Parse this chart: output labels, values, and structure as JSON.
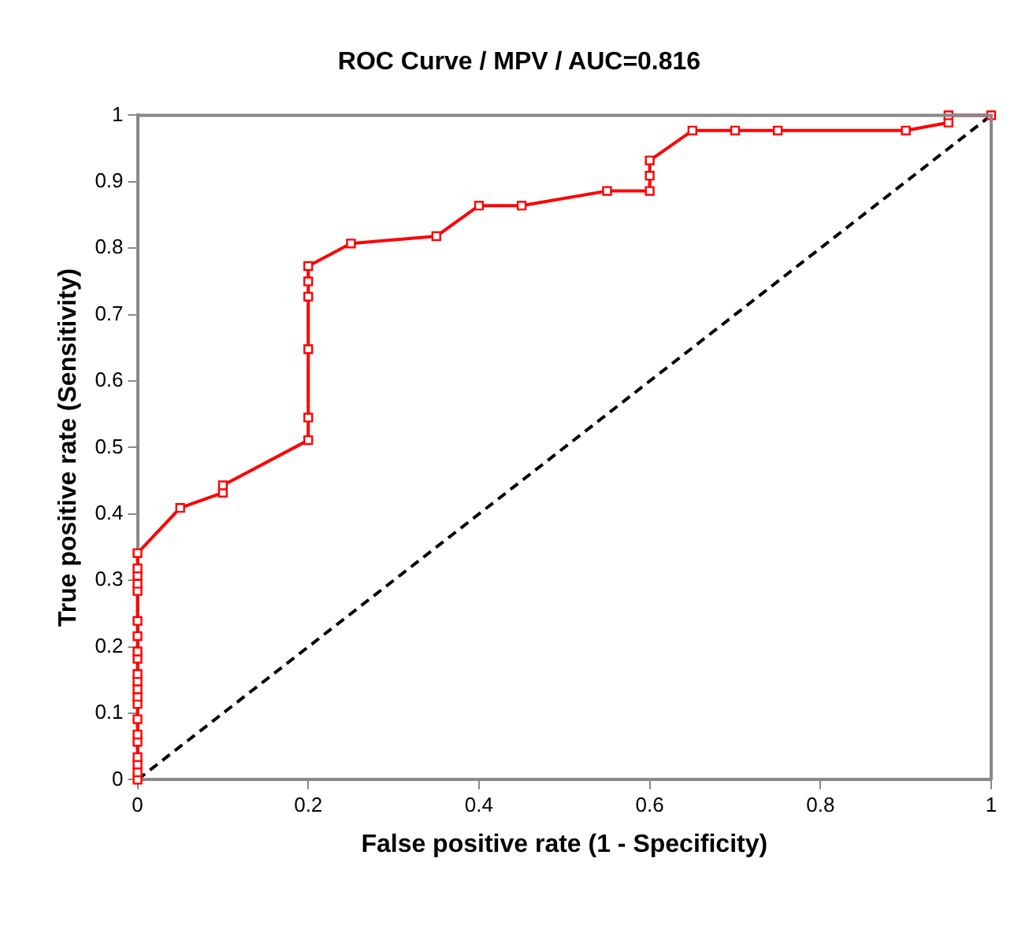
{
  "chart_data": {
    "type": "line",
    "title": "ROC Curve / MPV / AUC=0.816",
    "xlabel": "False positive rate (1 - Specificity)",
    "ylabel": "True positive rate (Sensitivity)",
    "xlim": [
      0,
      1
    ],
    "ylim": [
      0,
      1
    ],
    "xticks": [
      0,
      0.2,
      0.4,
      0.6,
      0.8,
      1
    ],
    "yticks": [
      0,
      0.1,
      0.2,
      0.3,
      0.4,
      0.5,
      0.6,
      0.7,
      0.8,
      0.9,
      1
    ],
    "grid": false,
    "legend": false,
    "series": [
      {
        "color": "#ff0000",
        "marker": "square",
        "line_style": "solid",
        "x": [
          0,
          0,
          0,
          0,
          0,
          0,
          0,
          0,
          0,
          0,
          0,
          0,
          0,
          0,
          0,
          0,
          0,
          0,
          0,
          0,
          0,
          0.05,
          0.1,
          0.1,
          0.2,
          0.2,
          0.2,
          0.2,
          0.2,
          0.2,
          0.25,
          0.35,
          0.4,
          0.45,
          0.55,
          0.6,
          0.6,
          0.6,
          0.65,
          0.7,
          0.75,
          0.9,
          0.95,
          0.95,
          1
        ],
        "values": [
          0,
          0.011,
          0.023,
          0.034,
          0.057,
          0.068,
          0.091,
          0.114,
          0.125,
          0.136,
          0.148,
          0.159,
          0.182,
          0.193,
          0.216,
          0.239,
          0.284,
          0.295,
          0.307,
          0.318,
          0.341,
          0.409,
          0.432,
          0.443,
          0.511,
          0.545,
          0.648,
          0.727,
          0.75,
          0.773,
          0.807,
          0.818,
          0.864,
          0.864,
          0.886,
          0.886,
          0.909,
          0.932,
          0.977,
          0.977,
          0.977,
          0.977,
          0.989,
          1,
          1
        ]
      },
      {
        "color": "#000000",
        "marker": "none",
        "line_style": "dashed",
        "x": [
          0,
          1
        ],
        "values": [
          0,
          1
        ]
      }
    ]
  }
}
